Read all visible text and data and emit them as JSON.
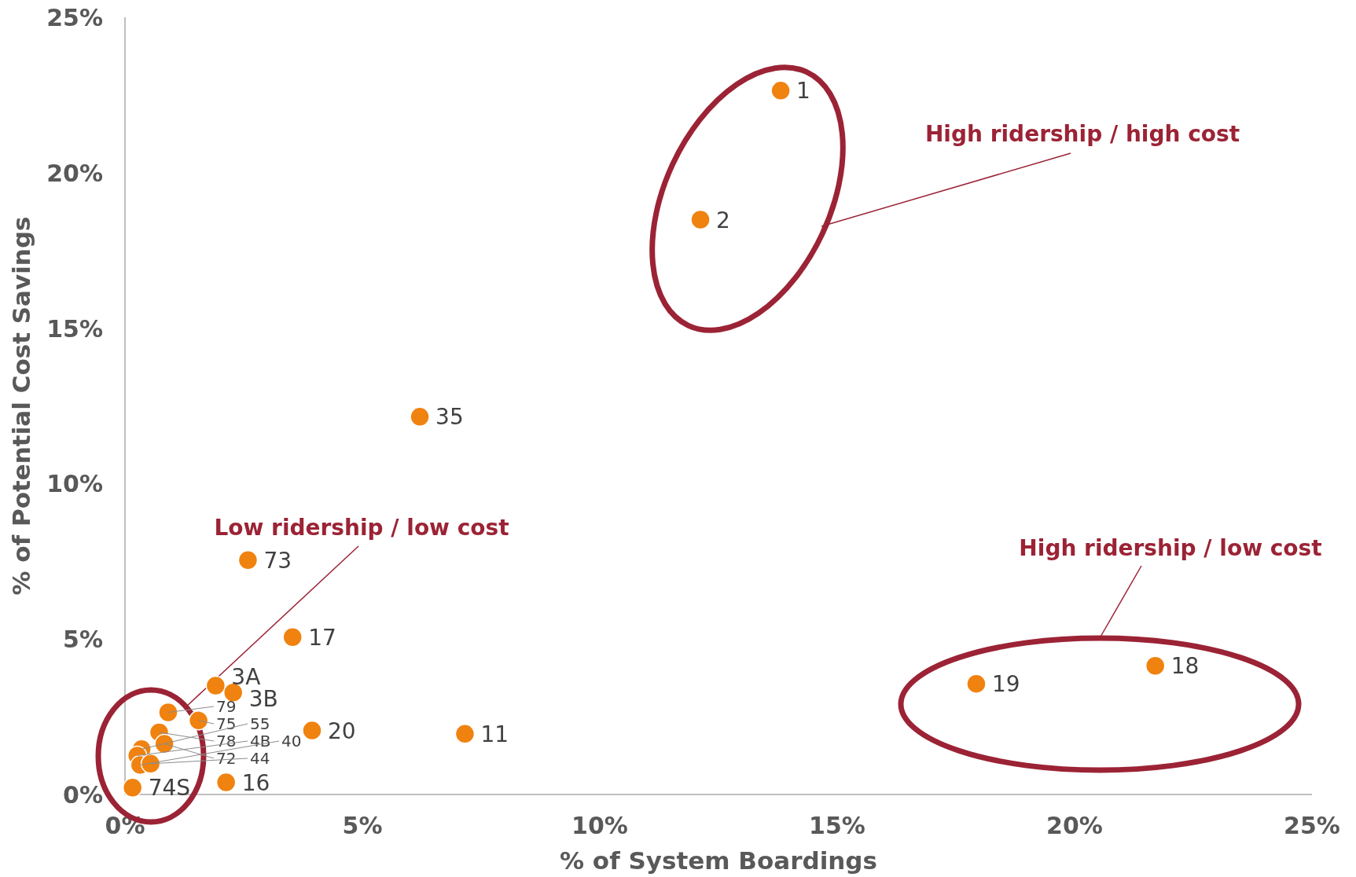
{
  "chart_data": {
    "type": "scatter",
    "xlabel": "% of System Boardings",
    "ylabel": "% of Potential Cost Savings",
    "x": [
      13.81,
      12.12,
      6.21,
      2.59,
      3.53,
      1.91,
      2.28,
      3.94,
      7.16,
      2.13,
      17.93,
      21.7,
      0.16,
      0.91,
      1.55,
      0.72,
      0.83,
      0.35,
      0.26,
      0.32,
      0.54
    ],
    "series": [
      {
        "color": "#f0820f",
        "values": [
          22.64,
          18.49,
          12.15,
          7.54,
          5.06,
          3.5,
          3.28,
          2.06,
          1.95,
          0.39,
          3.56,
          4.14,
          0.22,
          2.64,
          2.38,
          2.0,
          1.63,
          1.46,
          1.25,
          0.95,
          0.99
        ]
      }
    ],
    "xlim": [
      0,
      25
    ],
    "ylim": [
      0,
      25
    ],
    "xticks": [
      {
        "value": 0,
        "label": "0%"
      },
      {
        "value": 5,
        "label": "5%"
      },
      {
        "value": 10,
        "label": "10%"
      },
      {
        "value": 15,
        "label": "15%"
      },
      {
        "value": 20,
        "label": "20%"
      },
      {
        "value": 25,
        "label": "25%"
      }
    ],
    "yticks": [
      {
        "value": 0,
        "label": "0%"
      },
      {
        "value": 5,
        "label": "5%"
      },
      {
        "value": 10,
        "label": "10%"
      },
      {
        "value": 15,
        "label": "15%"
      },
      {
        "value": 20,
        "label": "20%"
      },
      {
        "value": 25,
        "label": "25%"
      }
    ],
    "marker": "circle",
    "grid": false,
    "annotations": [
      "High ridership / high cost",
      "High ridership / low cost",
      "Low ridership / low cost",
      {
        "text": "1",
        "x": 13.81,
        "y": 22.64
      },
      {
        "text": "2",
        "x": 12.12,
        "y": 18.49
      },
      {
        "text": "35",
        "x": 6.21,
        "y": 12.15
      },
      {
        "text": "73",
        "x": 2.59,
        "y": 7.54
      },
      {
        "text": "17",
        "x": 3.53,
        "y": 5.06
      },
      {
        "text": "3A",
        "x": 1.91,
        "y": 3.5
      },
      {
        "text": "3B",
        "x": 2.28,
        "y": 3.28
      },
      {
        "text": "20",
        "x": 3.94,
        "y": 2.06
      },
      {
        "text": "11",
        "x": 7.16,
        "y": 1.95
      },
      {
        "text": "16",
        "x": 2.13,
        "y": 0.39
      },
      {
        "text": "19",
        "x": 17.93,
        "y": 3.56
      },
      {
        "text": "18",
        "x": 21.7,
        "y": 4.14
      },
      {
        "text": "74S",
        "x": 0.16,
        "y": 0.22
      },
      {
        "text": "79",
        "x": 0.91,
        "y": 2.64
      },
      {
        "text": "75",
        "x": 1.55,
        "y": 2.38
      },
      {
        "text": "78",
        "x": 0.72,
        "y": 2.0
      },
      {
        "text": "72",
        "x": 0.83,
        "y": 1.63
      },
      {
        "text": "55",
        "x": 0.35,
        "y": 1.46
      },
      {
        "text": "4B",
        "x": 0.26,
        "y": 1.25
      },
      {
        "text": "40",
        "x": 0.32,
        "y": 0.95
      },
      {
        "text": "44",
        "x": 0.54,
        "y": 0.99
      }
    ]
  }
}
